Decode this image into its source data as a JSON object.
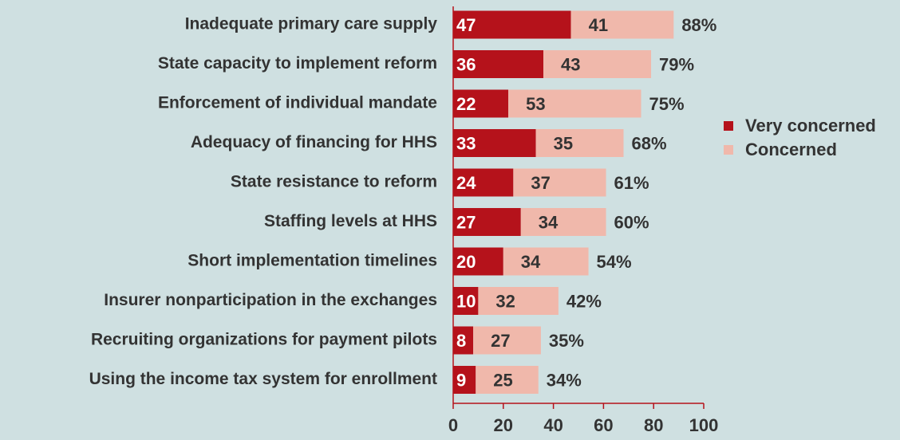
{
  "chart_data": {
    "type": "stacked-bar-horizontal",
    "categories": [
      "Inadequate primary care supply",
      "State capacity to implement reform",
      "Enforcement of individual mandate",
      "Adequacy of financing for HHS",
      "State resistance to reform",
      "Staffing levels at HHS",
      "Short implementation timelines",
      "Insurer nonparticipation in the exchanges",
      "Recruiting organizations for payment pilots",
      "Using the income tax system for enrollment"
    ],
    "series": [
      {
        "name": "Very concerned",
        "color": "#b5121b",
        "values": [
          47,
          36,
          22,
          33,
          24,
          27,
          20,
          10,
          8,
          9
        ]
      },
      {
        "name": "Concerned",
        "color": "#f0b8ab",
        "values": [
          41,
          43,
          53,
          35,
          37,
          34,
          34,
          32,
          27,
          25
        ]
      }
    ],
    "totals": [
      88,
      79,
      75,
      68,
      61,
      60,
      54,
      42,
      35,
      34
    ],
    "total_labels": [
      "88%",
      "79%",
      "75%",
      "68%",
      "61%",
      "60%",
      "54%",
      "42%",
      "35%",
      "34%"
    ],
    "xlim": [
      0,
      100
    ],
    "xticks": [
      0,
      20,
      40,
      60,
      80,
      100
    ],
    "legend": "right"
  }
}
